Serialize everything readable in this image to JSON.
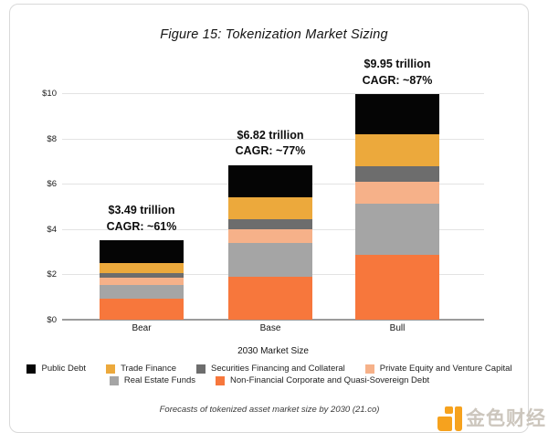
{
  "title": "Figure 15: Tokenization Market Sizing",
  "caption": "Forecasts of tokenized asset market size by 2030 (21.co)",
  "watermark": {
    "text": "金色财经"
  },
  "colors": {
    "card_border": "#d9d9d9",
    "gridline": "#e3e3e3",
    "axis": "#9b9b9b",
    "logo_orange": "#f6a21e"
  },
  "chart_data": {
    "type": "bar",
    "stacked": true,
    "grid": true,
    "title": "Figure 15: Tokenization Market Sizing",
    "xlabel": "2030 Market Size",
    "ylabel": "",
    "ylim": [
      0,
      10
    ],
    "categories": [
      "Bear",
      "Base",
      "Bull"
    ],
    "yticks": [
      {
        "label": "$0",
        "value": 0
      },
      {
        "label": "$2",
        "value": 2
      },
      {
        "label": "$4",
        "value": 4
      },
      {
        "label": "$6",
        "value": 6
      },
      {
        "label": "$8",
        "value": 8
      },
      {
        "label": "$10",
        "value": 10
      }
    ],
    "series": [
      {
        "name": "Non-Financial Corporate and Quasi-Sovereign Debt",
        "color": "#f7773c",
        "values": [
          0.93,
          1.89,
          2.85
        ]
      },
      {
        "name": "Real Estate Funds",
        "color": "#a5a5a5",
        "values": [
          0.6,
          1.48,
          2.26
        ]
      },
      {
        "name": "Private Equity and Venture Capital",
        "color": "#f6b189",
        "values": [
          0.31,
          0.61,
          0.99
        ]
      },
      {
        "name": "Securities Financing and Collateral",
        "color": "#6d6d6d",
        "values": [
          0.2,
          0.47,
          0.66
        ]
      },
      {
        "name": "Trade Finance",
        "color": "#eca93c",
        "values": [
          0.45,
          0.95,
          1.44
        ]
      },
      {
        "name": "Public Debt",
        "color": "#050505",
        "values": [
          1.0,
          1.42,
          1.75
        ]
      }
    ],
    "totals_label": [
      {
        "category": "Bear",
        "line1": "$3.49 trillion",
        "line2": "CAGR: ~61%"
      },
      {
        "category": "Base",
        "line1": "$6.82 trillion",
        "line2": "CAGR: ~77%"
      },
      {
        "category": "Bull",
        "line1": "$9.95 trillion",
        "line2": "CAGR: ~87%"
      }
    ],
    "legend_rows": [
      [
        "Public Debt",
        "Trade Finance",
        "Securities Financing and Collateral",
        "Private Equity and Venture Capital"
      ],
      [
        "Real Estate Funds",
        "Non-Financial Corporate and Quasi-Sovereign Debt"
      ]
    ],
    "legend_position": "bottom"
  }
}
